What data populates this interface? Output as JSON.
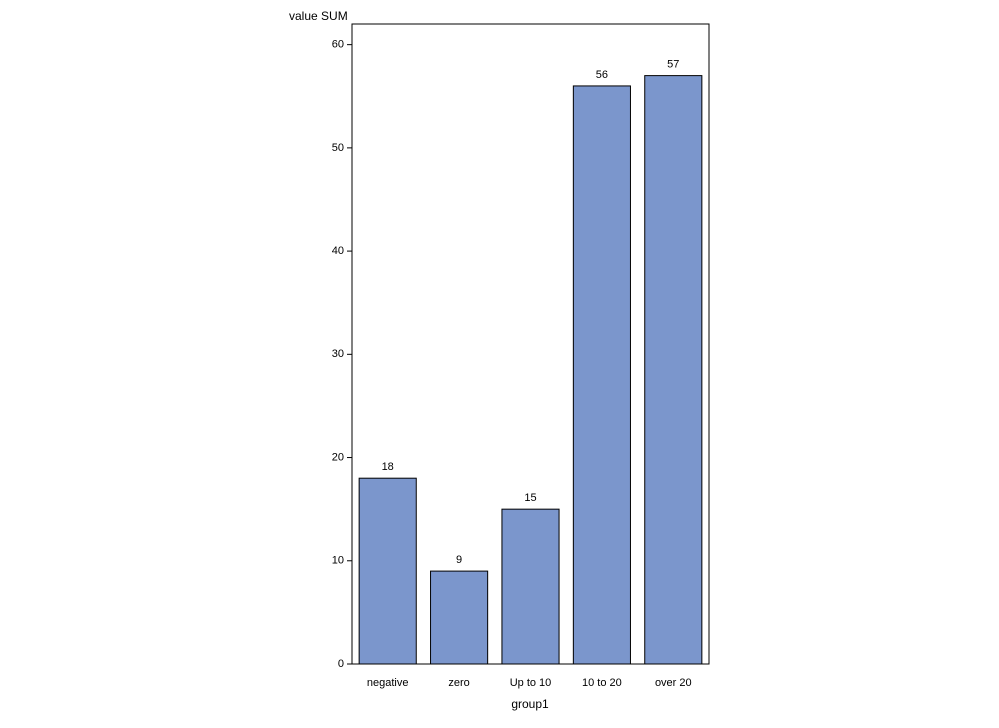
{
  "chart_data": {
    "type": "bar",
    "y_label": "value SUM",
    "x_label": "group1",
    "categories": [
      "negative",
      "zero",
      "Up to 10",
      "10 to 20",
      "over 20"
    ],
    "values": [
      18,
      9,
      15,
      56,
      57
    ],
    "color": "#7b96cc",
    "ylim": [
      0,
      62
    ],
    "yticks": [
      0,
      10,
      20,
      30,
      40,
      50,
      60
    ],
    "value_labels_shown": true
  }
}
